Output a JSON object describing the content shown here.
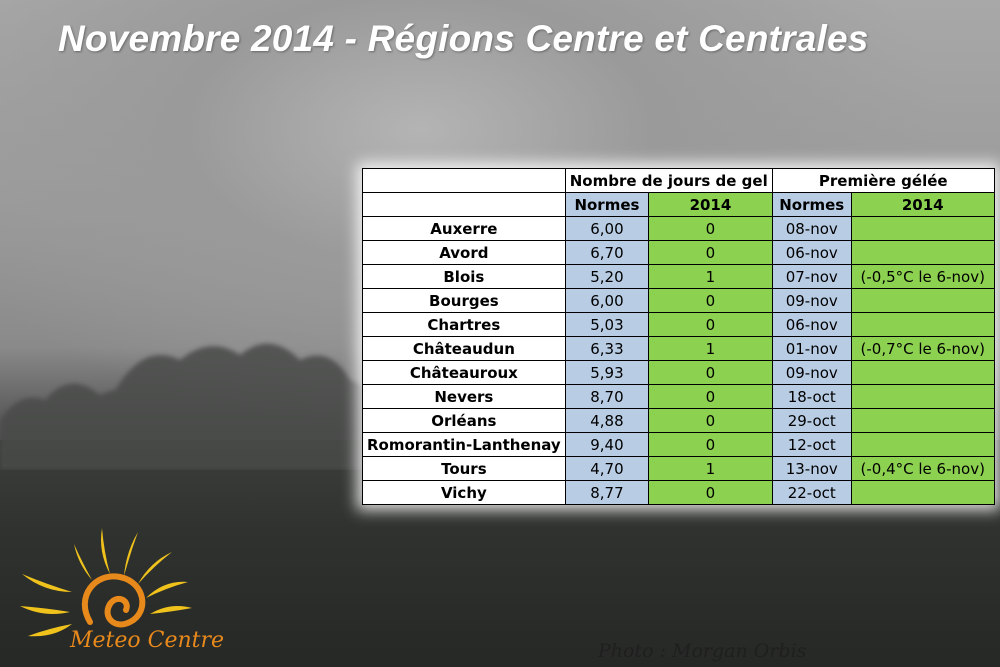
{
  "title": "Novembre 2014 - Régions Centre et Centrales",
  "table": {
    "group_headers": {
      "frost_days": "Nombre de jours de gel",
      "first_frost": "Première gélée"
    },
    "sub_headers": {
      "norms": "Normes",
      "year": "2014"
    },
    "rows": [
      {
        "city": "Auxerre",
        "frost_norm": "6,00",
        "frost_2014": "0",
        "first_norm": "08-nov",
        "first_2014": ""
      },
      {
        "city": "Avord",
        "frost_norm": "6,70",
        "frost_2014": "0",
        "first_norm": "06-nov",
        "first_2014": ""
      },
      {
        "city": "Blois",
        "frost_norm": "5,20",
        "frost_2014": "1",
        "first_norm": "07-nov",
        "first_2014": "(-0,5°C le 6-nov)"
      },
      {
        "city": "Bourges",
        "frost_norm": "6,00",
        "frost_2014": "0",
        "first_norm": "09-nov",
        "first_2014": ""
      },
      {
        "city": "Chartres",
        "frost_norm": "5,03",
        "frost_2014": "0",
        "first_norm": "06-nov",
        "first_2014": ""
      },
      {
        "city": "Châteaudun",
        "frost_norm": "6,33",
        "frost_2014": "1",
        "first_norm": "01-nov",
        "first_2014": "(-0,7°C le 6-nov)"
      },
      {
        "city": "Châteauroux",
        "frost_norm": "5,93",
        "frost_2014": "0",
        "first_norm": "09-nov",
        "first_2014": ""
      },
      {
        "city": "Nevers",
        "frost_norm": "8,70",
        "frost_2014": "0",
        "first_norm": "18-oct",
        "first_2014": ""
      },
      {
        "city": "Orléans",
        "frost_norm": "4,88",
        "frost_2014": "0",
        "first_norm": "29-oct",
        "first_2014": ""
      },
      {
        "city": "Romorantin-Lanthenay",
        "frost_norm": "9,40",
        "frost_2014": "0",
        "first_norm": "12-oct",
        "first_2014": ""
      },
      {
        "city": "Tours",
        "frost_norm": "4,70",
        "frost_2014": "1",
        "first_norm": "13-nov",
        "first_2014": "(-0,4°C le 6-nov)"
      },
      {
        "city": "Vichy",
        "frost_norm": "8,77",
        "frost_2014": "0",
        "first_norm": "22-oct",
        "first_2014": ""
      }
    ]
  },
  "logo": {
    "text": "Meteo Centre",
    "icon": "sun-spiral-icon",
    "color": "#e8891c"
  },
  "watermark": "Photo : Morgan Orbis"
}
